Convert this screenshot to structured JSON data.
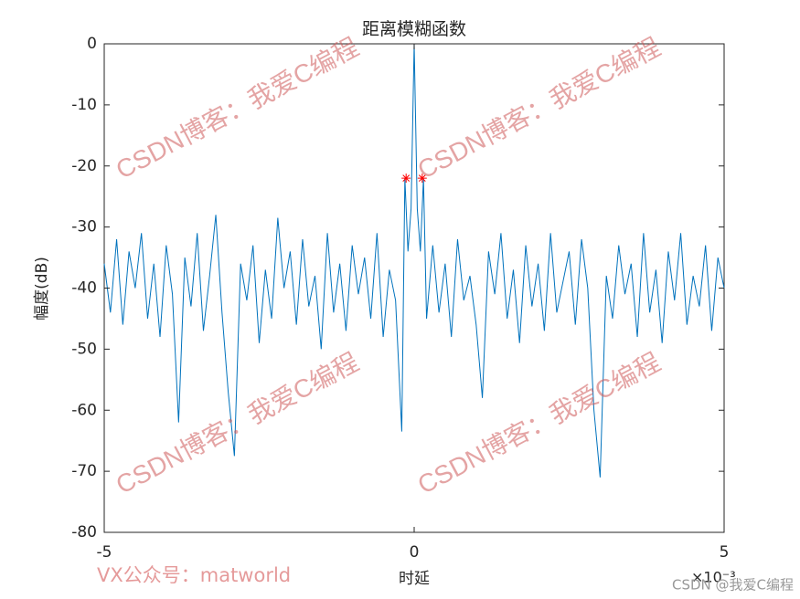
{
  "chart_data": {
    "type": "line",
    "title": "距离模糊函数",
    "x_label": "时延",
    "y_label": "幅度(dB)",
    "x_exponent_label": "×10⁻³",
    "xlim": [
      -5,
      5
    ],
    "xticks": [
      -5,
      0,
      5
    ],
    "ylim": [
      -80,
      0
    ],
    "yticks": [
      0,
      -10,
      -20,
      -30,
      -40,
      -50,
      -60,
      -70,
      -80
    ],
    "series": [
      {
        "color": "#0072bd",
        "marker": "none",
        "x": [
          -5.0,
          -4.9,
          -4.8,
          -4.7,
          -4.6,
          -4.5,
          -4.4,
          -4.3,
          -4.2,
          -4.1,
          -4.0,
          -3.9,
          -3.8,
          -3.7,
          -3.6,
          -3.5,
          -3.4,
          -3.3,
          -3.2,
          -3.1,
          -3.0,
          -2.9,
          -2.8,
          -2.7,
          -2.6,
          -2.5,
          -2.4,
          -2.3,
          -2.2,
          -2.1,
          -2.0,
          -1.9,
          -1.8,
          -1.7,
          -1.6,
          -1.5,
          -1.4,
          -1.3,
          -1.2,
          -1.1,
          -1.0,
          -0.9,
          -0.8,
          -0.7,
          -0.6,
          -0.5,
          -0.4,
          -0.3,
          -0.2,
          -0.15,
          -0.1,
          -0.05,
          0,
          0.05,
          0.1,
          0.15,
          0.2,
          0.3,
          0.4,
          0.5,
          0.6,
          0.7,
          0.8,
          0.9,
          1.0,
          1.1,
          1.2,
          1.3,
          1.4,
          1.5,
          1.6,
          1.7,
          1.8,
          1.9,
          2.0,
          2.1,
          2.2,
          2.3,
          2.4,
          2.5,
          2.6,
          2.7,
          2.8,
          2.9,
          3.0,
          3.1,
          3.2,
          3.3,
          3.4,
          3.5,
          3.6,
          3.7,
          3.8,
          3.9,
          4.0,
          4.1,
          4.2,
          4.3,
          4.4,
          4.5,
          4.6,
          4.7,
          4.8,
          4.9,
          5.0
        ],
        "values": [
          -36,
          -44,
          -32,
          -46,
          -34,
          -40,
          -31,
          -45,
          -36,
          -48,
          -33,
          -41,
          -62,
          -35,
          -43,
          -31,
          -47,
          -38,
          -28,
          -44,
          -57,
          -67.5,
          -36,
          -42,
          -33,
          -49,
          -37,
          -45,
          -28.5,
          -40,
          -34,
          -46,
          -32,
          -43,
          -38,
          -50,
          -31,
          -44,
          -36,
          -47,
          -33,
          -41,
          -35,
          -45,
          -31,
          -48,
          -37,
          -42,
          -63.5,
          -22,
          -34,
          -27,
          0,
          -27,
          -34,
          -22,
          -45,
          -33,
          -44,
          -36,
          -48,
          -32,
          -42,
          -38,
          -46,
          -58,
          -34,
          -41,
          -31,
          -45,
          -37,
          -49,
          -33,
          -43,
          -36,
          -47,
          -31,
          -44,
          -39,
          -34,
          -46,
          -32,
          -40,
          -60,
          -71,
          -38,
          -45,
          -33,
          -41,
          -36,
          -48,
          -31,
          -44,
          -37,
          -49,
          -34,
          -42,
          -31,
          -46,
          -38,
          -43,
          -33,
          -47,
          -35,
          -40
        ]
      },
      {
        "color": "#ff0000",
        "marker": "*",
        "x": [
          -0.13,
          0.13
        ],
        "values": [
          -22,
          -22
        ]
      }
    ],
    "watermarks": [
      "CSDN博客：我爱C编程",
      "CSDN博客：我爱C编程",
      "CSDN博客：我爱C编程",
      "CSDN博客：我爱C编程"
    ],
    "footer_left": "VX公众号：matworld",
    "footer_right": "CSDN @我爱C编程"
  }
}
